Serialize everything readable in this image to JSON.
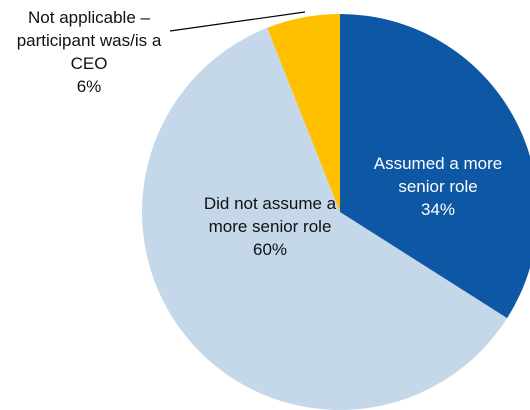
{
  "chart_data": {
    "type": "pie",
    "categories": [
      "Assumed a more senior role",
      "Did not assume a more senior role",
      "Not applicable – participant was/is a CEO"
    ],
    "values": [
      34,
      60,
      6
    ],
    "value_labels": [
      "34%",
      "60%",
      "6%"
    ],
    "colors": [
      "#0d57a5",
      "#c4d8ea",
      "#ffc000"
    ]
  }
}
